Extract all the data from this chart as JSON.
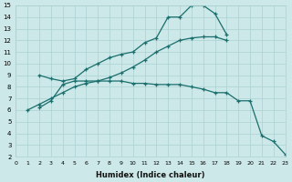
{
  "xlabel": "Humidex (Indice chaleur)",
  "xlim": [
    0,
    23
  ],
  "ylim": [
    2,
    15
  ],
  "xticks": [
    0,
    1,
    2,
    3,
    4,
    5,
    6,
    7,
    8,
    9,
    10,
    11,
    12,
    13,
    14,
    15,
    16,
    17,
    18,
    19,
    20,
    21,
    22,
    23
  ],
  "yticks": [
    2,
    3,
    4,
    5,
    6,
    7,
    8,
    9,
    10,
    11,
    12,
    13,
    14,
    15
  ],
  "background_color": "#cce8e8",
  "grid_color": "#aad0d0",
  "line_color": "#1a6e6e",
  "line1_x": [
    2,
    3,
    4,
    5,
    6,
    7,
    8,
    9,
    10,
    11,
    12,
    13,
    14,
    15,
    16,
    17,
    18
  ],
  "line1_y": [
    9.0,
    8.7,
    8.5,
    8.7,
    9.5,
    10.0,
    10.5,
    10.8,
    11.0,
    11.8,
    12.2,
    14.0,
    14.0,
    15.0,
    15.0,
    14.3,
    12.5
  ],
  "line2_x": [
    1,
    2,
    3,
    4,
    5,
    6,
    7,
    8,
    9,
    10,
    11,
    12,
    13,
    14,
    15,
    16,
    17,
    18
  ],
  "line2_y": [
    6.0,
    6.5,
    7.0,
    7.5,
    8.0,
    8.3,
    8.5,
    8.8,
    9.2,
    9.7,
    10.3,
    11.0,
    11.5,
    12.0,
    12.2,
    12.3,
    12.3,
    12.0
  ],
  "line3_x": [
    2,
    3,
    4,
    5,
    6,
    7,
    8,
    9,
    10,
    11,
    12,
    13,
    14,
    15,
    16,
    17,
    18,
    19,
    20,
    21,
    22,
    23
  ],
  "line3_y": [
    6.2,
    6.8,
    8.2,
    8.5,
    8.5,
    8.5,
    8.5,
    8.5,
    8.3,
    8.3,
    8.2,
    8.2,
    8.2,
    8.0,
    7.8,
    7.5,
    7.5,
    6.8,
    6.8,
    3.8,
    3.3,
    2.2
  ]
}
